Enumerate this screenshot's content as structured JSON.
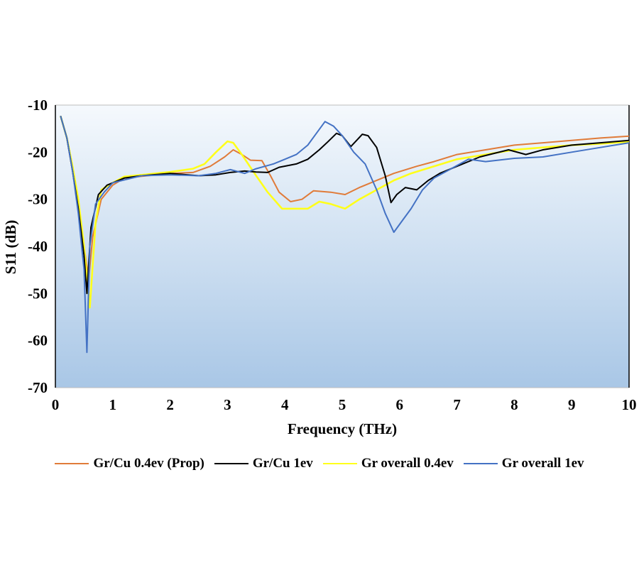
{
  "chart_data": {
    "type": "line",
    "title": "",
    "xlabel": "Frequency (THz)",
    "ylabel": "S11 (dB)",
    "xlim": [
      0,
      10
    ],
    "ylim": [
      -70,
      -10
    ],
    "xticks": [
      "0",
      "1",
      "2",
      "3",
      "4",
      "5",
      "6",
      "7",
      "8",
      "9",
      "10"
    ],
    "yticks": [
      "-10",
      "-20",
      "-30",
      "-40",
      "-50",
      "-60",
      "-70"
    ],
    "grid": false,
    "legend_position": "bottom",
    "series": [
      {
        "name": "Gr/Cu 0.4ev (Prop)",
        "color": "#e07b39",
        "x": [
          0.09,
          0.2,
          0.3,
          0.4,
          0.5,
          0.58,
          0.65,
          0.8,
          1.0,
          1.2,
          1.6,
          2.0,
          2.4,
          2.7,
          2.95,
          3.1,
          3.25,
          3.4,
          3.6,
          3.75,
          3.9,
          4.1,
          4.3,
          4.5,
          4.8,
          5.05,
          5.3,
          5.6,
          5.9,
          6.3,
          6.6,
          7.0,
          7.5,
          8.0,
          8.5,
          9.0,
          9.5,
          10.0
        ],
        "y": [
          -12.3,
          -17,
          -24,
          -32,
          -40,
          -47,
          -38,
          -30,
          -27,
          -25.5,
          -25,
          -24.5,
          -24.3,
          -23,
          -21,
          -19.5,
          -20.5,
          -21.7,
          -21.8,
          -25,
          -28.5,
          -30.5,
          -30,
          -28.2,
          -28.5,
          -29,
          -27.5,
          -26,
          -24.5,
          -23,
          -22,
          -20.5,
          -19.5,
          -18.5,
          -18,
          -17.5,
          -17,
          -16.6
        ]
      },
      {
        "name": "Gr/Cu 1ev",
        "color": "#000000",
        "x": [
          0.09,
          0.2,
          0.3,
          0.4,
          0.5,
          0.55,
          0.62,
          0.75,
          0.9,
          1.2,
          1.5,
          2.0,
          2.5,
          2.8,
          3.05,
          3.3,
          3.5,
          3.7,
          3.9,
          4.2,
          4.4,
          4.6,
          4.75,
          4.9,
          5.0,
          5.15,
          5.25,
          5.35,
          5.45,
          5.6,
          5.75,
          5.85,
          5.95,
          6.1,
          6.3,
          6.5,
          6.7,
          7.0,
          7.4,
          7.9,
          8.2,
          8.5,
          9.0,
          9.5,
          10.0
        ],
        "y": [
          -12.3,
          -17,
          -24,
          -32,
          -42,
          -50,
          -36,
          -29,
          -27,
          -25.5,
          -25,
          -24.5,
          -25,
          -24.8,
          -24.3,
          -24,
          -24.2,
          -24.3,
          -23.2,
          -22.5,
          -21.5,
          -19.5,
          -17.8,
          -16,
          -16.5,
          -18.8,
          -17.5,
          -16.2,
          -16.5,
          -19,
          -25,
          -30.7,
          -29,
          -27.5,
          -28,
          -26,
          -24.5,
          -23,
          -21,
          -19.5,
          -20.5,
          -19.5,
          -18.5,
          -18,
          -17.5
        ]
      },
      {
        "name": "Gr overall 0.4ev",
        "color": "#ffff1a",
        "x": [
          0.09,
          0.2,
          0.3,
          0.4,
          0.5,
          0.6,
          0.7,
          0.8,
          1.0,
          1.2,
          1.6,
          2.0,
          2.4,
          2.6,
          2.8,
          3.0,
          3.1,
          3.25,
          3.5,
          3.7,
          3.95,
          4.2,
          4.4,
          4.6,
          4.8,
          5.05,
          5.3,
          5.6,
          5.9,
          6.2,
          6.6,
          7.0,
          7.5,
          8.0,
          8.5,
          9.0,
          9.5,
          10.0
        ],
        "y": [
          -12.3,
          -17,
          -23,
          -30,
          -40,
          -53,
          -35,
          -28,
          -26.5,
          -25.2,
          -24.7,
          -24.2,
          -23.5,
          -22.5,
          -20,
          -17.7,
          -18,
          -20.5,
          -25,
          -28.5,
          -32,
          -32,
          -32,
          -30.5,
          -31,
          -32,
          -30,
          -28,
          -26,
          -24.5,
          -23,
          -21.5,
          -20.5,
          -19.5,
          -19,
          -18.5,
          -18.2,
          -17.8
        ]
      },
      {
        "name": "Gr overall 1ev",
        "color": "#4472c4",
        "x": [
          0.09,
          0.2,
          0.3,
          0.4,
          0.5,
          0.55,
          0.6,
          0.7,
          0.85,
          1.0,
          1.5,
          2.0,
          2.5,
          2.8,
          3.05,
          3.3,
          3.5,
          3.8,
          4.0,
          4.2,
          4.4,
          4.55,
          4.7,
          4.85,
          5.0,
          5.2,
          5.4,
          5.6,
          5.75,
          5.9,
          6.05,
          6.2,
          6.4,
          6.6,
          6.9,
          7.2,
          7.5,
          8.0,
          8.5,
          9.0,
          9.5,
          10.0
        ],
        "y": [
          -12.3,
          -17,
          -24,
          -33,
          -45,
          -62.5,
          -40,
          -31,
          -28.5,
          -26.5,
          -25,
          -24.8,
          -25,
          -24.5,
          -23.7,
          -24.5,
          -23.5,
          -22.5,
          -21.5,
          -20.5,
          -18.5,
          -16,
          -13.5,
          -14.5,
          -16.5,
          -20,
          -22.5,
          -28,
          -33,
          -37,
          -34.5,
          -32,
          -28,
          -25.5,
          -23.5,
          -21.5,
          -22,
          -21.3,
          -21,
          -20,
          -19,
          -18
        ]
      }
    ]
  }
}
